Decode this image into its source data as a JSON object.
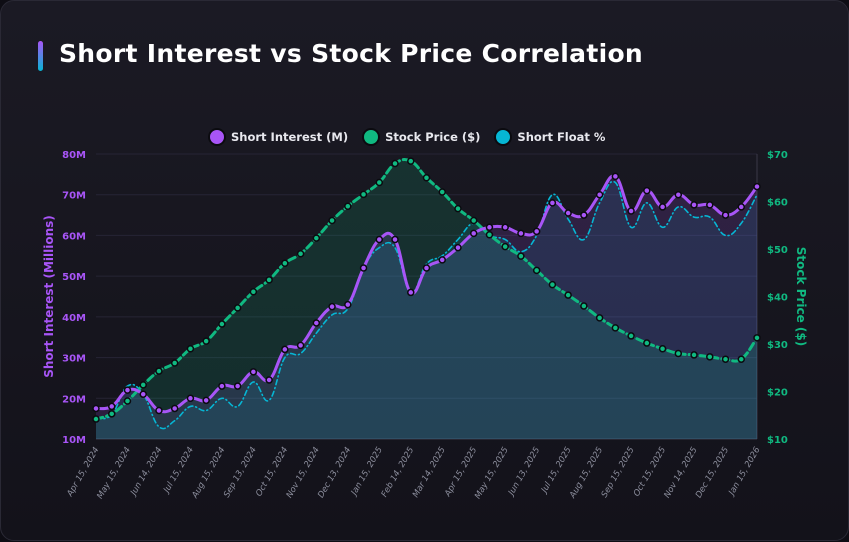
{
  "title": "Short Interest vs Stock Price Correlation",
  "colors": {
    "short_interest": "#a855f7",
    "stock_price": "#10b981",
    "short_float": "#06b6d4"
  },
  "chart_data": {
    "type": "line",
    "title": "Short Interest vs Stock Price Correlation",
    "legend_position": "top-center",
    "grid": true,
    "x_tick_labels": [
      "Apr 15, 2024",
      "May 15, 2024",
      "Jun 14, 2024",
      "Jul 15, 2024",
      "Aug 15, 2024",
      "Sep 13, 2024",
      "Oct 15, 2024",
      "Nov 15, 2024",
      "Dec 13, 2024",
      "Jan 15, 2025",
      "Feb 14, 2025",
      "Mar 14, 2025",
      "Apr 15, 2025",
      "May 15, 2025",
      "Jun 13, 2025",
      "Jul 15, 2025",
      "Aug 15, 2025",
      "Sep 15, 2025",
      "Oct 15, 2025",
      "Nov 14, 2025",
      "Dec 15, 2025",
      "Jan 15, 2026"
    ],
    "y_left": {
      "label": "Short Interest (Millions)",
      "range": [
        10,
        80
      ],
      "ticks": [
        "10M",
        "20M",
        "30M",
        "40M",
        "50M",
        "60M",
        "70M",
        "80M"
      ]
    },
    "y_right": {
      "label": "Stock Price ($)",
      "range": [
        10,
        70
      ],
      "ticks": [
        "$10",
        "$20",
        "$30",
        "$40",
        "$50",
        "$60",
        "$70"
      ]
    },
    "series": [
      {
        "name": "Short Interest (M)",
        "axis": "left",
        "style": "solid",
        "values": [
          17.5,
          18,
          22,
          21,
          17,
          17.5,
          20,
          19.5,
          23,
          23,
          26.5,
          24.5,
          32,
          33,
          38.5,
          42.5,
          43,
          52,
          59,
          59,
          46,
          52,
          54,
          57,
          60.5,
          62,
          62,
          60.5,
          61,
          68,
          65.5,
          65,
          70,
          74.5,
          66,
          71,
          67,
          70,
          67.5,
          67.5,
          65,
          67,
          72
        ]
      },
      {
        "name": "Stock Price ($)",
        "axis": "right",
        "style": "dashed",
        "values": [
          14.2,
          15.3,
          18,
          21.4,
          24.3,
          26,
          29,
          30.6,
          34.2,
          37.6,
          41,
          43.5,
          47,
          49,
          52.3,
          56,
          59,
          61.5,
          64,
          68,
          68.5,
          65,
          62,
          58.5,
          56,
          53,
          50.5,
          48.5,
          45.5,
          42.5,
          40.3,
          38,
          35.5,
          33.4,
          31.7,
          30.2,
          29,
          28,
          27.7,
          27.3,
          26.8,
          26.8,
          31.3
        ]
      },
      {
        "name": "Short Float %",
        "axis": "left",
        "style": "dash-dot",
        "values": [
          15,
          16,
          23,
          21,
          13,
          14.5,
          18,
          17,
          20,
          18,
          24,
          19.5,
          30,
          31,
          36,
          40.5,
          42,
          52,
          57,
          57,
          46,
          53,
          55,
          59,
          63,
          60,
          59,
          56,
          60,
          70,
          64,
          59,
          68,
          73,
          62,
          68,
          62,
          67,
          64.5,
          64.5,
          60,
          63,
          70
        ]
      }
    ]
  }
}
